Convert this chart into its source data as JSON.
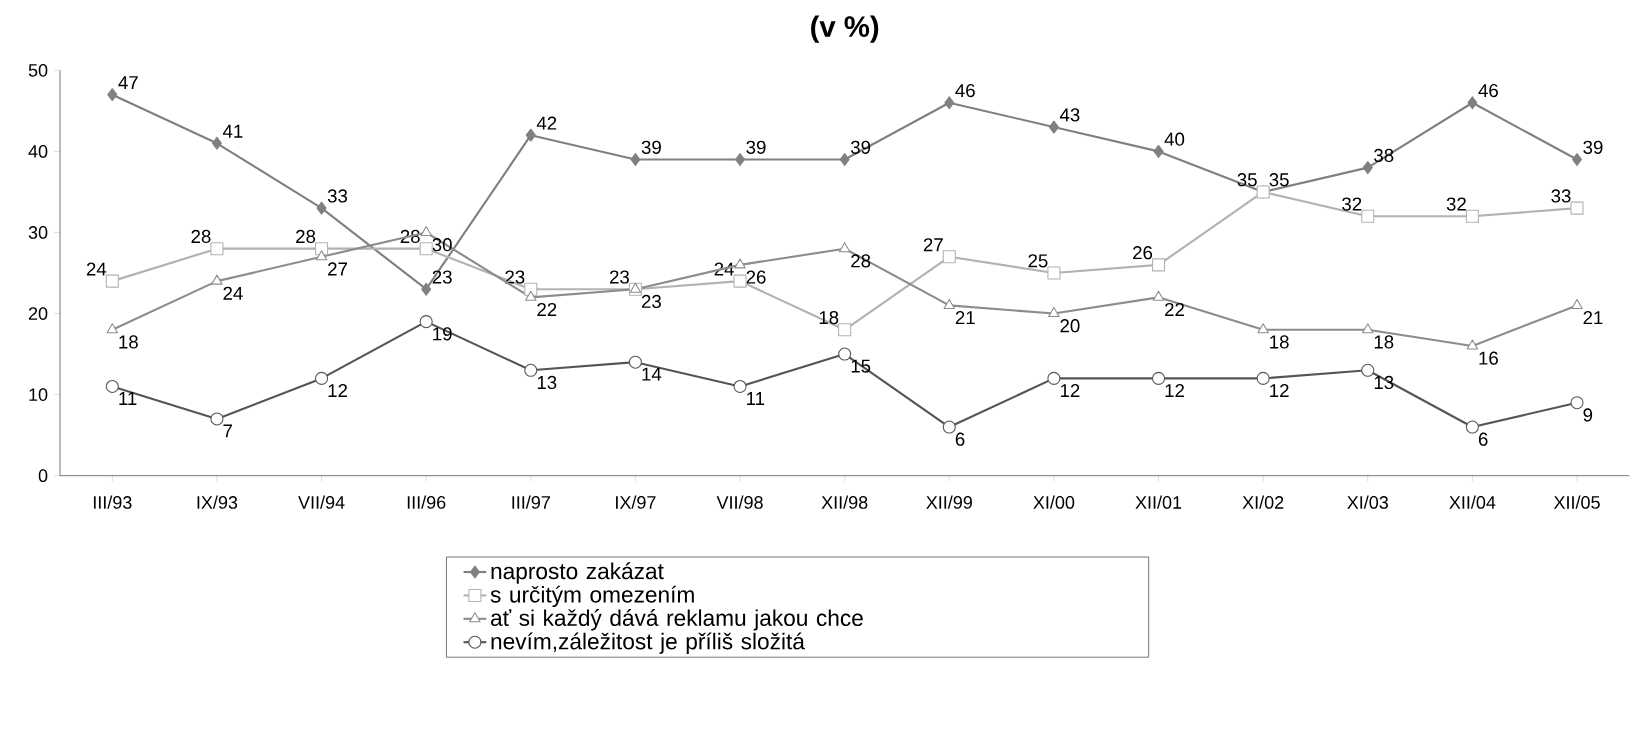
{
  "chart_data": {
    "type": "line",
    "title": "(v %)",
    "categories": [
      "III/93",
      "IX/93",
      "VII/94",
      "III/96",
      "III/97",
      "IX/97",
      "VII/98",
      "XII/98",
      "XII/99",
      "XI/00",
      "XII/01",
      "XI/02",
      "XI/03",
      "XII/04",
      "XII/05"
    ],
    "series": [
      {
        "name": "naprosto zakázat",
        "color": "#808080",
        "marker": "diamond",
        "values": [
          47,
          41,
          33,
          23,
          42,
          39,
          39,
          39,
          46,
          43,
          40,
          35,
          38,
          46,
          39
        ]
      },
      {
        "name": "s určitým omezením",
        "color": "#b2b2b2",
        "marker": "square",
        "values": [
          24,
          28,
          28,
          28,
          23,
          23,
          24,
          18,
          27,
          25,
          26,
          35,
          32,
          32,
          33
        ]
      },
      {
        "name": "ať si každý dává reklamu jakou chce",
        "color": "#8c8c8c",
        "marker": "triangle",
        "values": [
          18,
          24,
          27,
          30,
          22,
          23,
          26,
          28,
          21,
          20,
          22,
          18,
          18,
          16,
          21
        ]
      },
      {
        "name": "nevím,záležitost je příliš složitá",
        "color": "#555555",
        "marker": "circle",
        "values": [
          11,
          7,
          12,
          19,
          13,
          14,
          11,
          15,
          6,
          12,
          12,
          12,
          13,
          6,
          9
        ]
      }
    ],
    "ylim": [
      0,
      50
    ],
    "yticks": [
      0,
      10,
      20,
      30,
      40,
      50
    ],
    "data_labels": true,
    "legend": "bottom",
    "grid": false
  }
}
